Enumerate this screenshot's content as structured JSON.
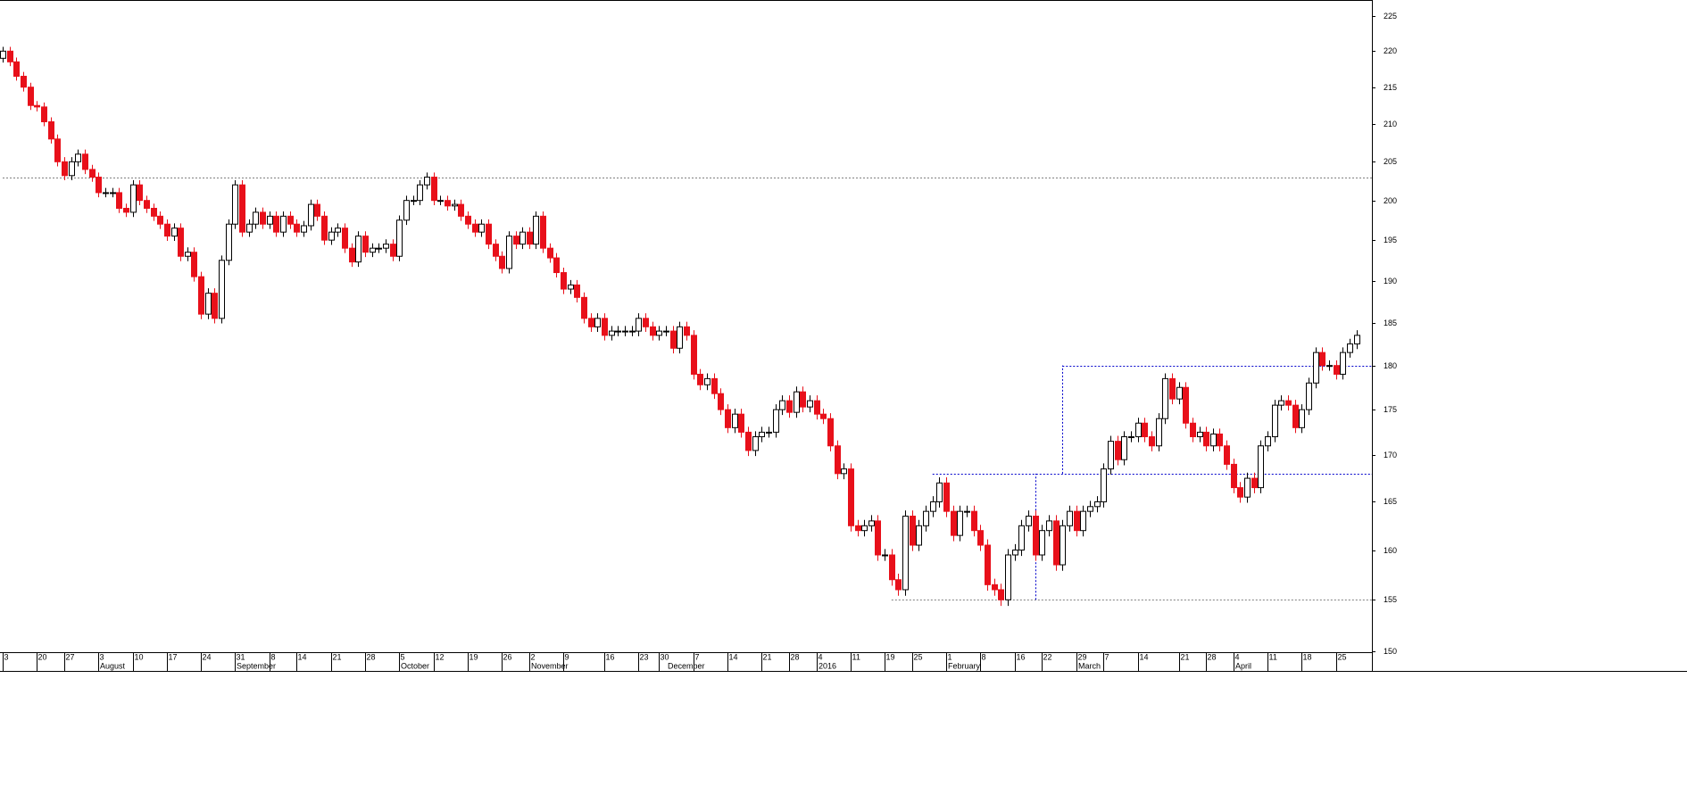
{
  "chart_data": {
    "type": "candlestick",
    "log_scale": true,
    "up_color": "#ffffff",
    "down_color": "#e8101a",
    "ylim": [
      149.9,
      227.3
    ],
    "yticks": [
      150,
      155,
      160,
      165,
      170,
      175,
      180,
      185,
      190,
      195,
      200,
      205,
      210,
      215,
      220,
      225
    ],
    "xticks": [
      {
        "value": 0,
        "label": "3"
      },
      {
        "value": 5,
        "label": "20"
      },
      {
        "value": 9,
        "label": "27"
      },
      {
        "value": 14,
        "label": "3"
      },
      {
        "value": 19,
        "label": "10"
      },
      {
        "value": 24,
        "label": "17"
      },
      {
        "value": 29,
        "label": "24"
      },
      {
        "value": 34,
        "label": "31"
      },
      {
        "value": 39,
        "label": "8"
      },
      {
        "value": 43,
        "label": "14"
      },
      {
        "value": 48,
        "label": "21"
      },
      {
        "value": 53,
        "label": "28"
      },
      {
        "value": 58,
        "label": "5"
      },
      {
        "value": 63,
        "label": "12"
      },
      {
        "value": 68,
        "label": "19"
      },
      {
        "value": 73,
        "label": "26"
      },
      {
        "value": 77,
        "label": "2"
      },
      {
        "value": 82,
        "label": "9"
      },
      {
        "value": 88,
        "label": "16"
      },
      {
        "value": 93,
        "label": "23"
      },
      {
        "value": 96,
        "label": "30"
      },
      {
        "value": 101,
        "label": "7"
      },
      {
        "value": 106,
        "label": "14"
      },
      {
        "value": 111,
        "label": "21"
      },
      {
        "value": 115,
        "label": "28"
      },
      {
        "value": 119,
        "label": "4"
      },
      {
        "value": 124,
        "label": "11"
      },
      {
        "value": 129,
        "label": "19"
      },
      {
        "value": 133,
        "label": "25"
      },
      {
        "value": 138,
        "label": "1"
      },
      {
        "value": 143,
        "label": "8"
      },
      {
        "value": 148,
        "label": "16"
      },
      {
        "value": 152,
        "label": "22"
      },
      {
        "value": 157,
        "label": "29"
      },
      {
        "value": 161,
        "label": "7"
      },
      {
        "value": 166,
        "label": "14"
      },
      {
        "value": 172,
        "label": "21"
      },
      {
        "value": 176,
        "label": "28"
      },
      {
        "value": 180,
        "label": "4"
      },
      {
        "value": 185,
        "label": "11"
      },
      {
        "value": 190,
        "label": "18"
      },
      {
        "value": 195,
        "label": "25"
      }
    ],
    "month_labels": [
      {
        "value": 14,
        "label": "August"
      },
      {
        "value": 34,
        "label": "September"
      },
      {
        "value": 58,
        "label": "October"
      },
      {
        "value": 77,
        "label": "November"
      },
      {
        "value": 97,
        "label": "December"
      },
      {
        "value": 119,
        "label": "2016"
      },
      {
        "value": 138,
        "label": "February"
      },
      {
        "value": 157,
        "label": "March"
      },
      {
        "value": 180,
        "label": "April"
      }
    ],
    "reference_lines": [
      {
        "value": 203,
        "start": 0,
        "color": "#808080"
      },
      {
        "value": 155,
        "start": 130,
        "color": "#808080"
      },
      {
        "value": 168,
        "start": 136,
        "color": "#0000cc"
      },
      {
        "value": 180,
        "start": 155,
        "color": "#0000cc"
      }
    ],
    "vertical_lines": [
      {
        "at": 151,
        "from": 155,
        "to": 168,
        "color": "#0000cc"
      },
      {
        "at": 155,
        "from": 168,
        "to": 180,
        "color": "#0000cc"
      }
    ],
    "open": [
      219,
      220,
      218.5,
      216.5,
      215,
      212.5,
      212.3,
      210.3,
      208,
      205,
      203.2,
      205,
      206,
      204,
      203,
      201,
      201,
      201,
      199,
      198.5,
      202,
      200,
      199,
      198,
      197,
      195.5,
      196.5,
      193,
      193.5,
      190.5,
      186,
      188.5,
      185.5,
      192.5,
      197,
      202,
      196,
      197,
      198.5,
      197,
      198,
      196,
      198,
      197,
      196,
      196.8,
      199.5,
      198,
      195,
      196,
      196.5,
      194,
      192.3,
      195.5,
      193.5,
      194,
      194,
      194.5,
      193,
      197.5,
      200,
      200,
      202,
      203,
      200,
      200,
      199.3,
      199.5,
      198,
      197,
      196,
      197,
      194.5,
      193,
      191.5,
      195.5,
      194.5,
      196,
      194.5,
      198,
      194,
      192.8,
      191,
      189,
      189.5,
      188,
      185.5,
      184.5,
      185.5,
      183.5,
      184,
      184,
      184,
      184,
      185.5,
      184.5,
      183.5,
      184,
      184,
      182,
      184.5,
      183.5,
      179,
      177.8,
      178.5,
      176.8,
      175,
      173,
      174.5,
      172.5,
      170.5,
      172,
      172.5,
      172.5,
      175,
      176,
      174.7,
      177,
      175.3,
      176,
      174.5,
      174,
      171,
      168,
      168.5,
      162.5,
      162,
      162.5,
      163,
      159.5,
      159.5,
      157,
      156,
      163.5,
      160.5,
      162.5,
      164,
      165,
      167,
      164,
      161.5,
      164,
      164,
      162,
      160.5,
      156.5,
      156,
      155,
      159.5,
      160,
      162.5,
      163.5,
      159.5,
      162,
      163,
      158.5,
      162.5,
      164,
      162,
      164,
      164.5,
      165,
      168.5,
      171.5,
      169.5,
      172,
      172,
      173.5,
      172,
      171,
      174,
      178.5,
      176.2,
      177.5,
      173.5,
      172,
      172.5,
      171,
      172.3,
      171,
      169,
      166.5,
      165.5,
      167.5,
      166.5,
      171,
      172,
      175.5,
      176,
      175.5,
      173,
      175,
      178,
      181.5,
      180,
      180,
      179,
      181.5,
      182.5
    ],
    "high": [
      220.6,
      220.6,
      219.1,
      217.1,
      215.6,
      213.1,
      212.9,
      210.9,
      208.6,
      205.6,
      205.6,
      206.6,
      206.6,
      204.6,
      203.6,
      201.6,
      201.6,
      201.6,
      199.6,
      202.6,
      202.6,
      200.6,
      199.6,
      198.6,
      197.6,
      197.1,
      197.1,
      194.1,
      194.1,
      191.1,
      189.1,
      189.1,
      193.1,
      197.6,
      202.6,
      202.6,
      197.6,
      199.1,
      199.1,
      198.6,
      198.6,
      198.6,
      198.6,
      197.6,
      197.4,
      200.1,
      200.1,
      198.6,
      196.6,
      197.1,
      197.1,
      194.6,
      196.1,
      196.1,
      194.6,
      194.6,
      195.1,
      195.1,
      198.1,
      200.6,
      200.6,
      202.6,
      203.6,
      203.6,
      200.6,
      200.6,
      200.1,
      200.1,
      198.6,
      197.6,
      197.6,
      197.6,
      195.1,
      193.6,
      196.1,
      196.1,
      196.6,
      196.6,
      198.6,
      198.6,
      194.6,
      193.4,
      191.6,
      190.1,
      190.1,
      188.6,
      186.1,
      186.1,
      186.1,
      184.6,
      184.6,
      184.6,
      184.6,
      186.1,
      186.1,
      185.1,
      184.6,
      184.6,
      184.6,
      185.1,
      185.1,
      184.1,
      179.6,
      179.1,
      179.1,
      177.4,
      175.6,
      175.1,
      175.1,
      173.1,
      172.6,
      173.1,
      173.1,
      175.6,
      176.6,
      176.6,
      177.6,
      177.6,
      176.6,
      176.6,
      175.1,
      174.6,
      171.6,
      169.1,
      169.1,
      163.1,
      163.1,
      163.6,
      163.6,
      160.1,
      160.1,
      157.6,
      164.1,
      164.1,
      163.1,
      164.6,
      165.6,
      167.6,
      167.6,
      164.6,
      164.6,
      164.6,
      164.6,
      162.6,
      161.1,
      157.1,
      156.6,
      160.1,
      160.6,
      163.1,
      164.1,
      164.1,
      162.6,
      163.6,
      163.6,
      163.1,
      164.6,
      164.6,
      164.6,
      165.1,
      165.6,
      169.1,
      172.1,
      172.1,
      172.6,
      172.6,
      174.1,
      174.1,
      172.6,
      174.6,
      179.1,
      179.1,
      178.1,
      178.1,
      174.1,
      173.1,
      173.1,
      172.9,
      172.9,
      171.6,
      169.6,
      167.1,
      168.1,
      168.1,
      171.6,
      172.6,
      176.1,
      176.6,
      176.6,
      176.1,
      175.6,
      178.6,
      182.1,
      182.1,
      180.6,
      180.6,
      182.1,
      183.1,
      184.1
    ],
    "low": [
      218.4,
      217.9,
      215.9,
      214.4,
      211.9,
      211.7,
      209.7,
      207.4,
      204.4,
      202.6,
      202.6,
      204.4,
      203.4,
      202.4,
      200.4,
      200.4,
      200.4,
      198.4,
      197.9,
      197.9,
      199.4,
      198.4,
      197.4,
      196.4,
      194.9,
      194.9,
      192.4,
      192.4,
      189.9,
      185.4,
      185.4,
      184.9,
      184.9,
      191.9,
      196.4,
      195.4,
      195.4,
      196.4,
      196.4,
      196.4,
      195.4,
      195.4,
      196.4,
      195.4,
      195.4,
      196.2,
      197.4,
      194.4,
      194.4,
      195.4,
      193.4,
      191.7,
      191.7,
      192.9,
      192.9,
      193.4,
      193.4,
      192.4,
      192.4,
      196.9,
      199.4,
      199.4,
      201.4,
      199.4,
      199.4,
      198.7,
      198.7,
      197.4,
      196.4,
      195.4,
      195.4,
      193.9,
      192.4,
      190.9,
      190.9,
      193.9,
      193.9,
      193.9,
      193.9,
      193.4,
      192.2,
      190.4,
      188.4,
      188.4,
      187.4,
      184.9,
      183.9,
      183.9,
      182.9,
      182.9,
      183.4,
      183.4,
      183.4,
      183.4,
      183.9,
      182.9,
      182.9,
      183.4,
      181.4,
      181.4,
      182.9,
      178.4,
      177.2,
      177.2,
      176.2,
      174.4,
      172.4,
      172.4,
      171.9,
      169.9,
      169.9,
      171.4,
      171.9,
      171.9,
      174.4,
      174.1,
      174.1,
      174.7,
      174.7,
      173.9,
      173.4,
      170.4,
      167.4,
      167.4,
      161.9,
      161.4,
      161.4,
      161.9,
      158.9,
      158.9,
      156.4,
      155.4,
      155.4,
      159.9,
      159.9,
      161.9,
      163.4,
      164.4,
      163.4,
      160.9,
      160.9,
      163.4,
      161.4,
      159.9,
      155.9,
      155.4,
      154.4,
      154.4,
      158.9,
      159.4,
      161.9,
      158.9,
      158.9,
      161.4,
      157.9,
      157.9,
      161.9,
      161.4,
      161.4,
      163.4,
      163.9,
      164.4,
      167.9,
      168.9,
      168.9,
      171.4,
      171.4,
      171.4,
      170.4,
      170.4,
      173.4,
      175.6,
      175.6,
      172.9,
      171.4,
      171.4,
      170.4,
      170.4,
      170.4,
      168.4,
      165.9,
      164.9,
      164.9,
      165.9,
      165.9,
      170.4,
      171.4,
      174.9,
      174.9,
      172.4,
      172.4,
      174.4,
      177.4,
      179.4,
      179.4,
      178.4,
      178.4,
      180.9,
      181.9
    ],
    "close": [
      220,
      218.5,
      216.5,
      215,
      212.5,
      212.3,
      210.3,
      208,
      205,
      203.2,
      205,
      206,
      204,
      203,
      201,
      201,
      201,
      199,
      198.5,
      202,
      200,
      199,
      198,
      197,
      195.5,
      196.5,
      193,
      193.5,
      190.5,
      186,
      188.5,
      185.5,
      192.5,
      197,
      202,
      196,
      197,
      198.5,
      197,
      198,
      196,
      198,
      197,
      196,
      196.8,
      199.5,
      198,
      195,
      196,
      196.5,
      194,
      192.3,
      195.5,
      193.5,
      194,
      194,
      194.5,
      193,
      197.5,
      200,
      200,
      202,
      203,
      200,
      200,
      199.3,
      199.5,
      198,
      197,
      196,
      197,
      194.5,
      193,
      191.5,
      195.5,
      194.5,
      196,
      194.5,
      198,
      194,
      192.8,
      191,
      189,
      189.5,
      188,
      185.5,
      184.5,
      185.5,
      183.5,
      184,
      184,
      184,
      184,
      185.5,
      184.5,
      183.5,
      184,
      184,
      182,
      184.5,
      183.5,
      179,
      177.8,
      178.5,
      176.8,
      175,
      173,
      174.5,
      172.5,
      170.5,
      172,
      172.5,
      172.5,
      175,
      176,
      174.7,
      177,
      175.3,
      176,
      174.5,
      174,
      171,
      168,
      168.5,
      162.5,
      162,
      162.5,
      163,
      159.5,
      159.5,
      157,
      156,
      163.5,
      160.5,
      162.5,
      164,
      165,
      167,
      164,
      161.5,
      164,
      164,
      162,
      160.5,
      156.5,
      156,
      155,
      159.5,
      160,
      162.5,
      163.5,
      159.5,
      162,
      163,
      158.5,
      162.5,
      164,
      162,
      164,
      164.5,
      165,
      168.5,
      171.5,
      169.5,
      172,
      172,
      173.5,
      172,
      171,
      174,
      178.5,
      176.2,
      177.5,
      173.5,
      172,
      172.5,
      171,
      172.3,
      171,
      169,
      166.5,
      165.5,
      167.5,
      166.5,
      171,
      172,
      175.5,
      176,
      175.5,
      173,
      175,
      178,
      181.5,
      180,
      180,
      179,
      181.5,
      182.5,
      183.5
    ]
  }
}
